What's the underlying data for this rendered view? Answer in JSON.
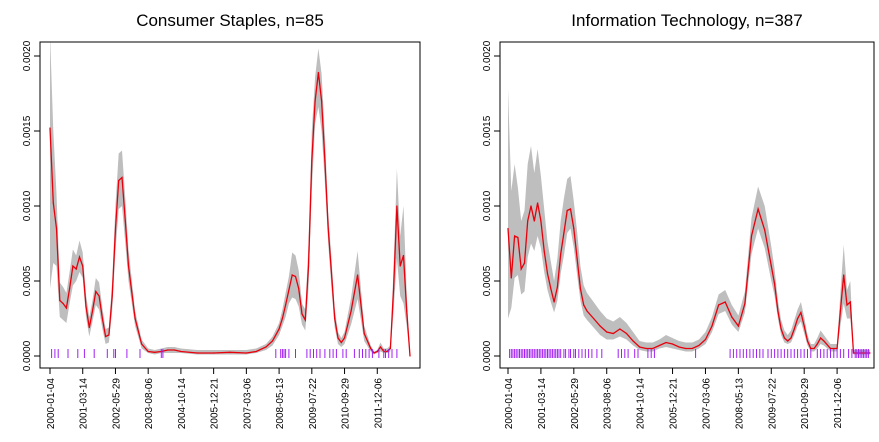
{
  "chart_data": [
    {
      "type": "line",
      "title": "Consumer Staples, n=85",
      "xlabel": "",
      "ylabel": "",
      "ylim": [
        0,
        0.002
      ],
      "yticks": [
        "0.0000",
        "0.0005",
        "0.0010",
        "0.0015",
        "0.0020"
      ],
      "xticks": [
        "2000-01-04",
        "2001-03-14",
        "2002-05-29",
        "2003-08-06",
        "2004-10-14",
        "2005-12-21",
        "2007-03-06",
        "2008-05-13",
        "2009-07-22",
        "2010-09-29",
        "2011-12-06"
      ],
      "grid": false,
      "colors": {
        "line": "#e8000b",
        "band": "#bebebe",
        "rug": "#a020f0"
      },
      "series": [
        {
          "x": [
            0.0,
            0.1,
            0.2,
            0.3,
            0.4,
            0.5,
            0.6,
            0.7,
            0.8,
            0.9,
            1.0,
            1.1,
            1.2,
            1.3,
            1.4,
            1.5,
            1.6,
            1.7,
            1.8,
            1.9,
            2.0,
            2.1,
            2.2,
            2.3,
            2.4,
            2.6,
            2.8,
            3.0,
            3.2,
            3.4,
            3.6,
            3.8,
            4.0,
            4.5,
            5.0,
            5.5,
            6.0,
            6.3,
            6.6,
            6.8,
            7.0,
            7.1,
            7.2,
            7.3,
            7.4,
            7.5,
            7.6,
            7.7,
            7.8,
            7.9,
            8.0,
            8.1,
            8.2,
            8.3,
            8.4,
            8.5,
            8.6,
            8.7,
            8.8,
            8.9,
            9.0,
            9.2,
            9.4,
            9.6,
            9.8,
            9.9,
            10.0,
            10.1,
            10.2,
            10.3,
            10.4,
            10.5,
            10.6,
            10.7,
            10.8,
            10.9,
            11.0
          ],
          "mean": [
            0.00152,
            0.00102,
            0.00085,
            0.00037,
            0.00035,
            0.00032,
            0.00045,
            0.0006,
            0.00058,
            0.00066,
            0.0006,
            0.00033,
            0.00019,
            0.0003,
            0.00043,
            0.0004,
            0.00025,
            0.00013,
            0.00014,
            0.0004,
            0.00085,
            0.00117,
            0.00119,
            0.0009,
            0.0006,
            0.00025,
            8e-05,
            3e-05,
            2.5e-05,
            3e-05,
            4e-05,
            4e-05,
            3e-05,
            2e-05,
            2e-05,
            2.5e-05,
            2e-05,
            3e-05,
            6e-05,
            0.0001,
            0.00018,
            0.00025,
            0.00034,
            0.00044,
            0.00054,
            0.00053,
            0.00045,
            0.00028,
            0.00024,
            0.0006,
            0.0013,
            0.0017,
            0.00189,
            0.0017,
            0.0013,
            0.00085,
            0.00055,
            0.00025,
            0.00012,
            9e-05,
            0.00012,
            0.0003,
            0.00054,
            0.00015,
            5e-05,
            2e-05,
            3e-05,
            6e-05,
            3e-05,
            3e-05,
            5e-05,
            0.00045,
            0.001,
            0.0006,
            0.00067,
            0.0003,
            0.0
          ],
          "lower": [
            0.00045,
            0.00062,
            0.0006,
            0.00026,
            0.00024,
            0.00022,
            0.00035,
            0.00047,
            0.0005,
            0.00056,
            0.00052,
            0.00026,
            0.00013,
            0.00023,
            0.00034,
            0.00031,
            0.00018,
            8e-05,
            9e-05,
            0.0003,
            0.0007,
            0.00098,
            0.001,
            0.00075,
            0.0005,
            0.0002,
            5e-05,
            2e-05,
            1e-05,
            2e-05,
            2e-05,
            2e-05,
            2e-05,
            1e-05,
            1e-05,
            1e-05,
            1e-05,
            2e-05,
            4e-05,
            7e-05,
            0.00014,
            0.0002,
            0.00026,
            0.00035,
            0.00039,
            0.00038,
            0.00033,
            0.00021,
            0.00017,
            0.00045,
            0.0011,
            0.00155,
            0.00166,
            0.0015,
            0.00115,
            0.00075,
            0.00045,
            0.00019,
            8e-05,
            6e-05,
            8e-05,
            0.00021,
            0.00038,
            0.0001,
            3e-05,
            1e-05,
            2e-05,
            3e-05,
            2e-05,
            2e-05,
            3e-05,
            0.0003,
            0.00065,
            0.0004,
            0.00035,
            0.0002,
            0.0
          ],
          "upper": [
            0.00215,
            0.0015,
            0.00108,
            0.00049,
            0.00046,
            0.00042,
            0.00056,
            0.00071,
            0.00067,
            0.00077,
            0.00069,
            0.00041,
            0.00026,
            0.00037,
            0.00052,
            0.00049,
            0.00032,
            0.00018,
            0.00019,
            0.0005,
            0.00101,
            0.00135,
            0.00137,
            0.00105,
            0.00071,
            0.0003,
            0.00011,
            5e-05,
            4e-05,
            5e-05,
            6e-05,
            6e-05,
            5e-05,
            4e-05,
            4e-05,
            4e-05,
            4e-05,
            5e-05,
            8e-05,
            0.00013,
            0.00022,
            0.00031,
            0.00042,
            0.00053,
            0.00069,
            0.00067,
            0.00057,
            0.00035,
            0.00031,
            0.00075,
            0.0015,
            0.00186,
            0.00205,
            0.00188,
            0.00147,
            0.00096,
            0.00065,
            0.00032,
            0.00016,
            0.00012,
            0.00016,
            0.00039,
            0.0007,
            0.0002,
            7e-05,
            3e-05,
            4e-05,
            9e-05,
            5e-05,
            5e-05,
            7e-05,
            0.0006,
            0.00125,
            0.0008,
            0.001,
            0.00042,
            1e-05
          ]
        }
      ],
      "rug": [
        0.05,
        0.15,
        0.25,
        0.55,
        0.85,
        1.05,
        1.35,
        1.75,
        1.95,
        2.0,
        2.35,
        2.75,
        3.4,
        3.45,
        6.9,
        7.05,
        7.1,
        7.15,
        7.2,
        7.3,
        7.5,
        7.85,
        7.95,
        8.05,
        8.15,
        8.25,
        8.4,
        8.55,
        8.65,
        8.75,
        8.95,
        9.05,
        9.3,
        9.45,
        9.55,
        9.65,
        9.75,
        9.85,
        10.05,
        10.2,
        10.25,
        10.35,
        10.45,
        10.6
      ]
    },
    {
      "type": "line",
      "title": "Information Technology, n=387",
      "xlabel": "",
      "ylabel": "",
      "ylim": [
        0,
        0.002
      ],
      "yticks": [
        "0.0000",
        "0.0005",
        "0.0010",
        "0.0015",
        "0.0020"
      ],
      "xticks": [
        "2000-01-04",
        "2001-03-14",
        "2002-05-29",
        "2003-08-06",
        "2004-10-14",
        "2005-12-21",
        "2007-03-06",
        "2008-05-13",
        "2009-07-22",
        "2010-09-29",
        "2011-12-06"
      ],
      "grid": false,
      "colors": {
        "line": "#e8000b",
        "band": "#bebebe",
        "rug": "#a020f0"
      },
      "series": [
        {
          "x": [
            0.0,
            0.1,
            0.2,
            0.3,
            0.4,
            0.5,
            0.6,
            0.7,
            0.8,
            0.9,
            1.0,
            1.1,
            1.2,
            1.3,
            1.4,
            1.5,
            1.6,
            1.7,
            1.8,
            1.9,
            2.0,
            2.1,
            2.2,
            2.3,
            2.4,
            2.6,
            2.8,
            3.0,
            3.2,
            3.4,
            3.6,
            3.8,
            4.0,
            4.2,
            4.4,
            4.6,
            4.8,
            5.0,
            5.2,
            5.4,
            5.6,
            5.8,
            6.0,
            6.2,
            6.4,
            6.6,
            6.8,
            7.0,
            7.2,
            7.4,
            7.6,
            7.8,
            8.0,
            8.1,
            8.2,
            8.3,
            8.4,
            8.5,
            8.6,
            8.7,
            8.8,
            8.9,
            9.0,
            9.1,
            9.2,
            9.3,
            9.4,
            9.5,
            9.6,
            9.8,
            10.0,
            10.1,
            10.2,
            10.3,
            10.4,
            10.5,
            10.6,
            10.7,
            10.8,
            10.9,
            11.0
          ],
          "mean": [
            0.00085,
            0.00052,
            0.0008,
            0.00079,
            0.00058,
            0.00062,
            0.0009,
            0.001,
            0.0009,
            0.00102,
            0.0009,
            0.0007,
            0.00055,
            0.00045,
            0.00036,
            0.00046,
            0.00068,
            0.00082,
            0.00097,
            0.00098,
            0.00085,
            0.00065,
            0.00045,
            0.00034,
            0.0003,
            0.00025,
            0.0002,
            0.00016,
            0.00015,
            0.00018,
            0.00015,
            0.0001,
            6e-05,
            5e-05,
            5e-05,
            7e-05,
            9e-05,
            8e-05,
            6e-05,
            5e-05,
            5e-05,
            7e-05,
            0.00011,
            0.0002,
            0.00034,
            0.00036,
            0.00026,
            0.0002,
            0.00035,
            0.0008,
            0.00098,
            0.00084,
            0.0006,
            0.00048,
            0.0003,
            0.00018,
            0.00012,
            0.0001,
            0.00012,
            0.00018,
            0.00025,
            0.00029,
            0.0002,
            0.0001,
            5e-05,
            5e-05,
            8e-05,
            0.00012,
            0.0001,
            5e-05,
            5e-05,
            0.0003,
            0.00054,
            0.00034,
            0.00036,
            2e-05,
            2e-05,
            2e-05,
            2e-05,
            2e-05,
            2e-05
          ],
          "lower": [
            0.00025,
            0.00032,
            0.00052,
            0.00054,
            0.00041,
            0.00043,
            0.00066,
            0.00075,
            0.0007,
            0.0008,
            0.00072,
            0.00056,
            0.00044,
            0.00036,
            0.00029,
            0.00037,
            0.00055,
            0.00067,
            0.00082,
            0.00085,
            0.00072,
            0.00054,
            0.00037,
            0.00027,
            0.00024,
            0.00019,
            0.00014,
            0.00011,
            0.00011,
            0.00013,
            0.00011,
            7e-05,
            4e-05,
            3e-05,
            3e-05,
            5e-05,
            6e-05,
            5e-05,
            4e-05,
            3e-05,
            3e-05,
            5e-05,
            8e-05,
            0.00016,
            0.00028,
            0.0003,
            0.00021,
            0.00016,
            0.00029,
            0.00068,
            0.00085,
            0.00072,
            0.0005,
            0.0004,
            0.00025,
            0.00014,
            9e-05,
            8e-05,
            9e-05,
            0.00014,
            0.0002,
            0.00023,
            0.00015,
            7e-05,
            3e-05,
            3e-05,
            5e-05,
            8e-05,
            7e-05,
            3e-05,
            3e-05,
            0.0002,
            0.00035,
            0.00025,
            0.00025,
            1e-05,
            1e-05,
            1e-05,
            1e-05,
            1e-05,
            1e-05
          ],
          "upper": [
            0.00178,
            0.0011,
            0.00128,
            0.00112,
            0.0009,
            0.00097,
            0.00128,
            0.0014,
            0.00122,
            0.00138,
            0.0012,
            0.00098,
            0.00076,
            0.00063,
            0.0005,
            0.00065,
            0.0009,
            0.00105,
            0.00118,
            0.0012,
            0.00103,
            0.00083,
            0.0006,
            0.00047,
            0.00042,
            0.00036,
            0.0003,
            0.00025,
            0.00023,
            0.00026,
            0.00022,
            0.00016,
            0.0001,
            9e-05,
            9e-05,
            0.00011,
            0.00014,
            0.00012,
            0.0001,
            9e-05,
            9e-05,
            0.00011,
            0.00016,
            0.00026,
            0.00041,
            0.00044,
            0.00034,
            0.00027,
            0.00043,
            0.00092,
            0.00113,
            0.001,
            0.00073,
            0.00058,
            0.00037,
            0.00024,
            0.00017,
            0.00014,
            0.00017,
            0.00024,
            0.00031,
            0.00036,
            0.00026,
            0.00014,
            8e-05,
            8e-05,
            0.00012,
            0.00017,
            0.00014,
            8e-05,
            8e-05,
            0.00042,
            0.00074,
            0.00044,
            0.0005,
            4e-05,
            4e-05,
            4e-05,
            4e-05,
            4e-05,
            4e-05
          ]
        }
      ],
      "rug": [
        0.05,
        0.1,
        0.15,
        0.2,
        0.25,
        0.3,
        0.35,
        0.4,
        0.45,
        0.5,
        0.55,
        0.6,
        0.65,
        0.7,
        0.75,
        0.8,
        0.85,
        0.9,
        0.95,
        1.0,
        1.05,
        1.1,
        1.15,
        1.2,
        1.25,
        1.3,
        1.35,
        1.4,
        1.45,
        1.5,
        1.55,
        1.6,
        1.7,
        1.75,
        1.85,
        1.9,
        2.0,
        2.05,
        2.15,
        2.25,
        2.35,
        2.45,
        2.55,
        2.7,
        2.85,
        3.35,
        3.45,
        3.55,
        3.65,
        3.85,
        3.95,
        4.25,
        4.35,
        4.45,
        5.7,
        6.75,
        6.85,
        6.95,
        7.05,
        7.15,
        7.25,
        7.35,
        7.45,
        7.55,
        7.65,
        7.75,
        7.9,
        8.0,
        8.1,
        8.2,
        8.3,
        8.4,
        8.5,
        8.6,
        8.7,
        8.8,
        8.9,
        9.0,
        9.1,
        9.2,
        9.4,
        9.5,
        9.6,
        9.7,
        9.8,
        9.9,
        10.0,
        10.1,
        10.2,
        10.35,
        10.45,
        10.55,
        10.6,
        10.65,
        10.7,
        10.75,
        10.8,
        10.85,
        10.9,
        10.95
      ]
    }
  ]
}
